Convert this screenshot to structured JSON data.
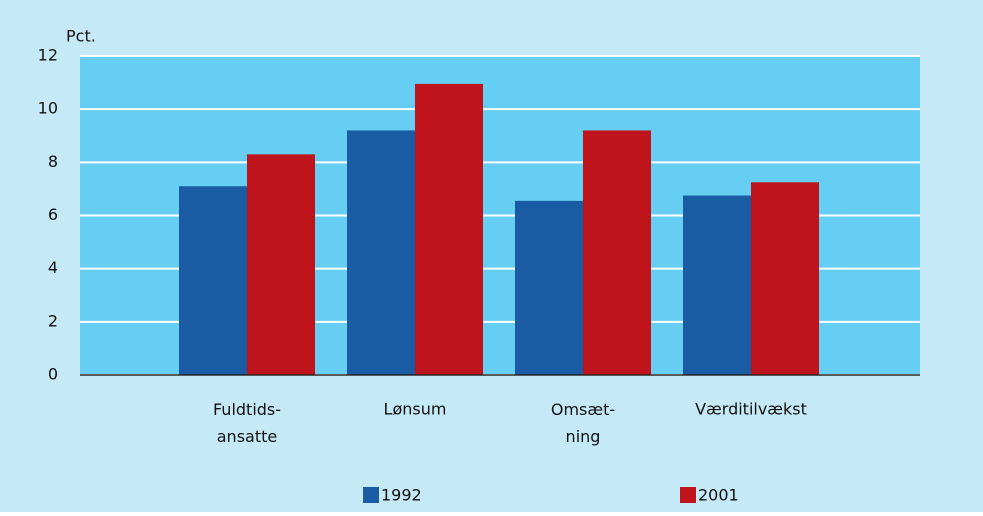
{
  "chart_data": {
    "type": "bar",
    "y_label": "Pct.",
    "categories": [
      "Fuldtids-\nansatte",
      "Lønsum",
      "Omsæt-\nning",
      "Værditilvækst"
    ],
    "series": [
      {
        "name": "1992",
        "color": "#1a5ca3",
        "values": [
          7.1,
          9.2,
          6.55,
          6.75
        ]
      },
      {
        "name": "2001",
        "color": "#c0141c",
        "values": [
          8.3,
          10.95,
          9.2,
          7.25
        ]
      }
    ],
    "ylim": [
      0,
      12
    ],
    "yticks": [
      0,
      2,
      4,
      6,
      8,
      10,
      12
    ],
    "grid": true,
    "legend": "bottom"
  }
}
